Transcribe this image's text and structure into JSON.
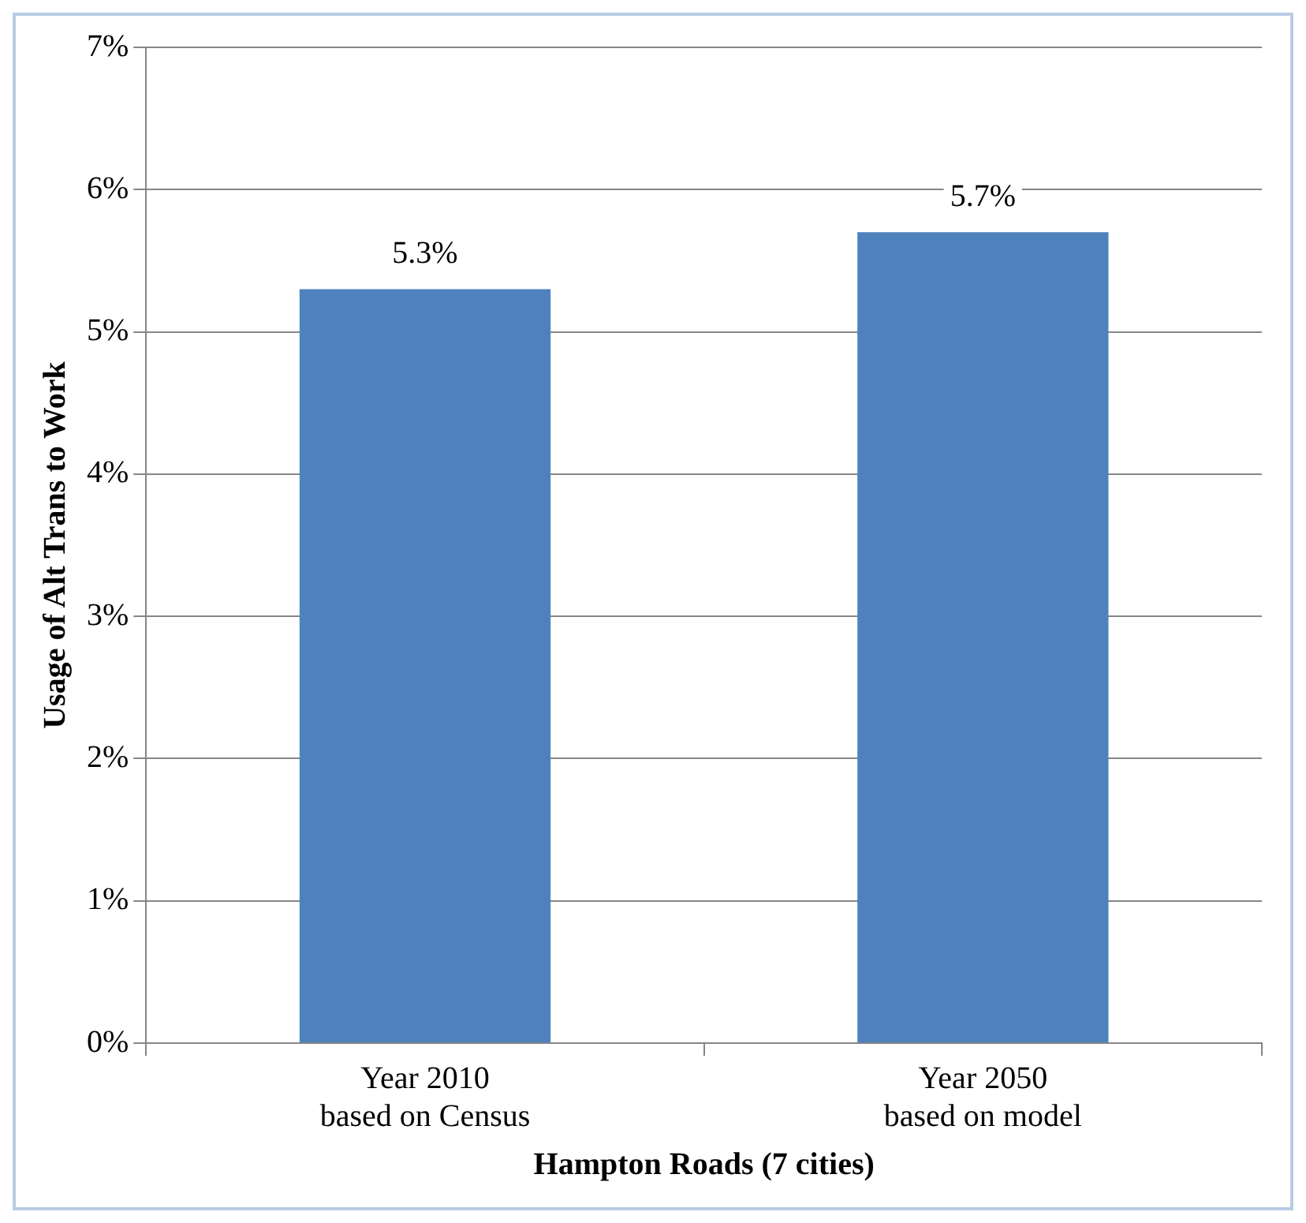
{
  "chart_data": {
    "type": "bar",
    "xlabel": "Hampton Roads (7 cities)",
    "ylabel": "Usage of Alt Trans to Work",
    "categories": [
      "Year 2010\nbased on Census",
      "Year 2050\nbased on model"
    ],
    "values": [
      5.3,
      5.7
    ],
    "value_labels": [
      "5.3%",
      "5.7%"
    ],
    "color": "#4f81bd",
    "ylim": [
      0,
      7
    ],
    "yticks": [
      {
        "value": 0,
        "label": "0%"
      },
      {
        "value": 1,
        "label": "1%"
      },
      {
        "value": 2,
        "label": "2%"
      },
      {
        "value": 3,
        "label": "3%"
      },
      {
        "value": 4,
        "label": "4%"
      },
      {
        "value": 5,
        "label": "5%"
      },
      {
        "value": 6,
        "label": "6%"
      },
      {
        "value": 7,
        "label": "7%"
      }
    ],
    "grid": "y",
    "legend": false
  }
}
